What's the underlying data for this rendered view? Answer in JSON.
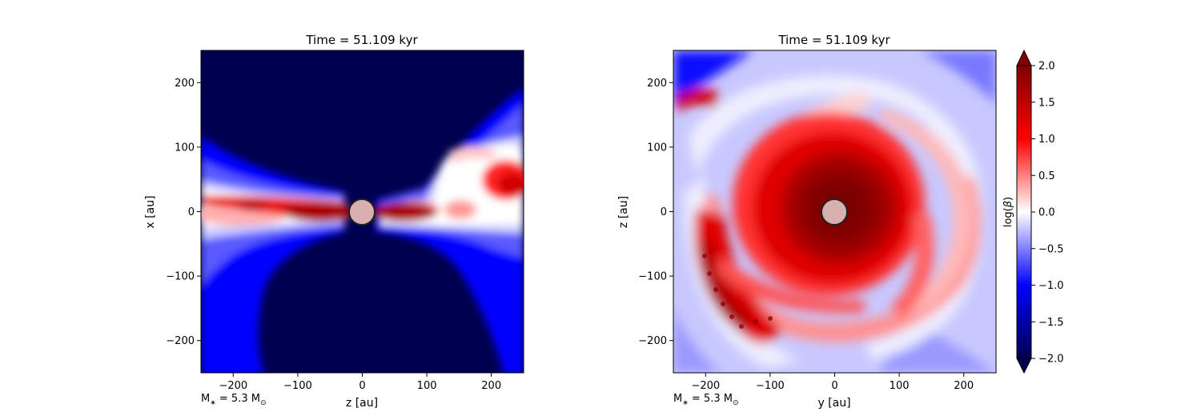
{
  "colors": {
    "deep_blue": "#000050",
    "blue": "#0000ff",
    "white": "#ffffff",
    "red": "#ff0000",
    "deep_red": "#800000",
    "star_fill": "#d8b0b0",
    "star_edge": "#222222"
  },
  "chart_data": [
    {
      "type": "heatmap",
      "title": "Time = 51.109 kyr",
      "xlabel": "z [au]",
      "ylabel": "x [au]",
      "xlim": [
        -250,
        250
      ],
      "ylim": [
        -250,
        250
      ],
      "xticks": [
        -200,
        -100,
        0,
        100,
        200
      ],
      "yticks": [
        -200,
        -100,
        0,
        100,
        200
      ],
      "tick_labels": [
        "−200",
        "−100",
        "0",
        "100",
        "200"
      ],
      "annotation": "M$_*$ = 5.3 M$_\\odot$",
      "annotation_parts": [
        "M",
        "∗",
        " = 5.3 M",
        "⊙"
      ],
      "star": {
        "x": 0,
        "y": 0,
        "radius": 20
      },
      "variable": "log(β)",
      "view": "edge-on"
    },
    {
      "type": "heatmap",
      "title": "Time = 51.109 kyr",
      "xlabel": "y [au]",
      "ylabel": "z [au]",
      "xlim": [
        -250,
        250
      ],
      "ylim": [
        -250,
        250
      ],
      "xticks": [
        -200,
        -100,
        0,
        100,
        200
      ],
      "yticks": [
        -200,
        -100,
        0,
        100,
        200
      ],
      "tick_labels": [
        "−200",
        "−100",
        "0",
        "100",
        "200"
      ],
      "annotation": "M$_*$ = 5.3 M$_\\odot$",
      "annotation_parts": [
        "M",
        "∗",
        " = 5.3 M",
        "⊙"
      ],
      "star": {
        "x": 0,
        "y": 0,
        "radius": 20
      },
      "variable": "log(β)",
      "view": "face-on"
    }
  ],
  "colorbar": {
    "label": "log(β)",
    "label_parts": [
      "log(",
      "β",
      ")"
    ],
    "range": [
      -2.0,
      2.0
    ],
    "ticks": [
      2.0,
      1.5,
      1.0,
      0.5,
      0.0,
      -0.5,
      -1.0,
      -1.5,
      -2.0
    ],
    "tick_labels": [
      "2.0",
      "1.5",
      "1.0",
      "0.5",
      "0.0",
      "−0.5",
      "−1.0",
      "−1.5",
      "−2.0"
    ],
    "extend": "both",
    "colormap": "seismic"
  }
}
